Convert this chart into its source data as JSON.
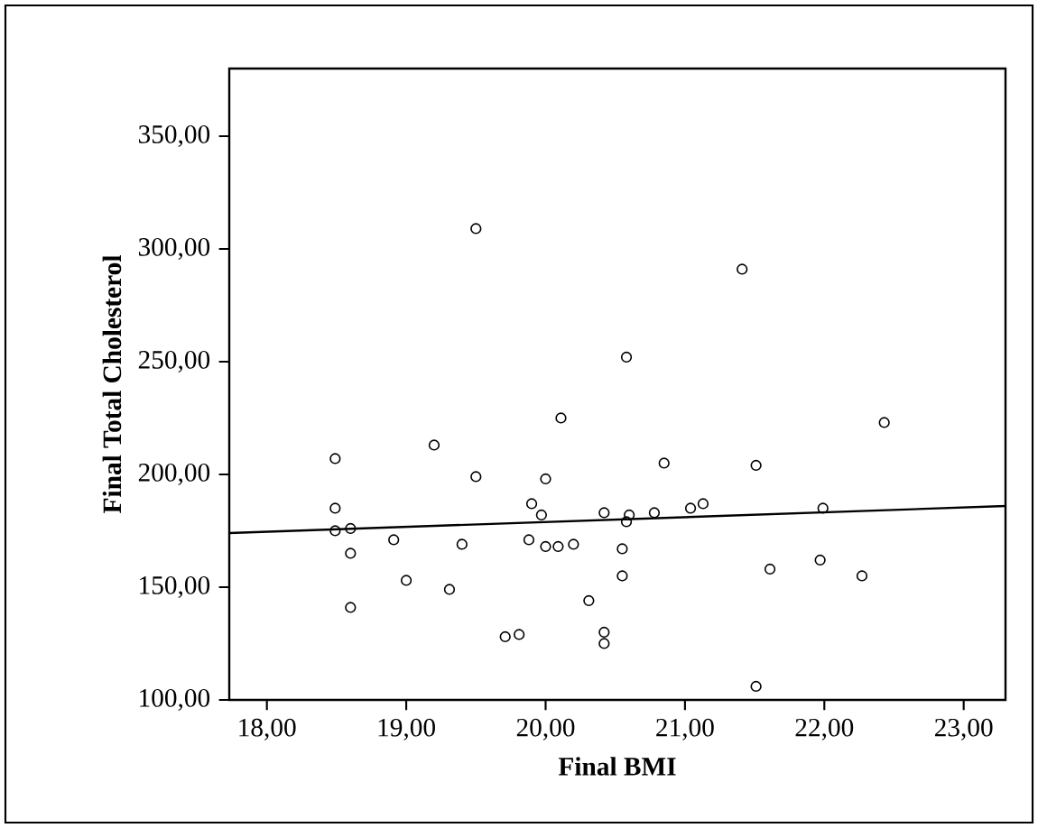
{
  "chart_data": {
    "type": "scatter",
    "xlabel": "Final BMI",
    "ylabel": "Final Total Cholesterol",
    "xlim": [
      17.73,
      23.3
    ],
    "ylim": [
      100,
      380
    ],
    "xticks": [
      {
        "value": 18,
        "label": "18,00"
      },
      {
        "value": 19,
        "label": "19,00"
      },
      {
        "value": 20,
        "label": "20,00"
      },
      {
        "value": 21,
        "label": "21,00"
      },
      {
        "value": 22,
        "label": "22,00"
      },
      {
        "value": 23,
        "label": "23,00"
      }
    ],
    "yticks": [
      {
        "value": 100,
        "label": "100,00"
      },
      {
        "value": 150,
        "label": "150,00"
      },
      {
        "value": 200,
        "label": "200,00"
      },
      {
        "value": 250,
        "label": "250,00"
      },
      {
        "value": 300,
        "label": "300,00"
      },
      {
        "value": 350,
        "label": "350,00"
      }
    ],
    "grid": false,
    "series": [
      {
        "color": "#000000",
        "marker": "circle",
        "x": [
          18.49,
          18.49,
          18.49,
          18.6,
          18.6,
          18.6,
          18.91,
          19.0,
          19.2,
          19.31,
          19.4,
          19.5,
          19.5,
          19.71,
          19.81,
          19.88,
          19.9,
          19.97,
          20.0,
          20.0,
          20.09,
          20.11,
          20.2,
          20.31,
          20.42,
          20.42,
          20.42,
          20.55,
          20.55,
          20.58,
          20.58,
          20.6,
          20.78,
          20.85,
          21.04,
          21.13,
          21.41,
          21.51,
          21.51,
          21.61,
          21.97,
          21.99,
          22.27,
          22.43
        ],
        "values": [
          207,
          185,
          175,
          176,
          165,
          141,
          171,
          153,
          213,
          149,
          169,
          309,
          199,
          128,
          129,
          171,
          187,
          182,
          198,
          168,
          168,
          225,
          169,
          144,
          130,
          125,
          183,
          167,
          155,
          252,
          179,
          182,
          183,
          205,
          185,
          187,
          291,
          204,
          106,
          158,
          162,
          185,
          155,
          223
        ]
      },
      {
        "type": "line",
        "marker": "none",
        "color": "#000000",
        "x": [
          17.73,
          23.3
        ],
        "values": [
          174,
          186
        ]
      }
    ]
  }
}
